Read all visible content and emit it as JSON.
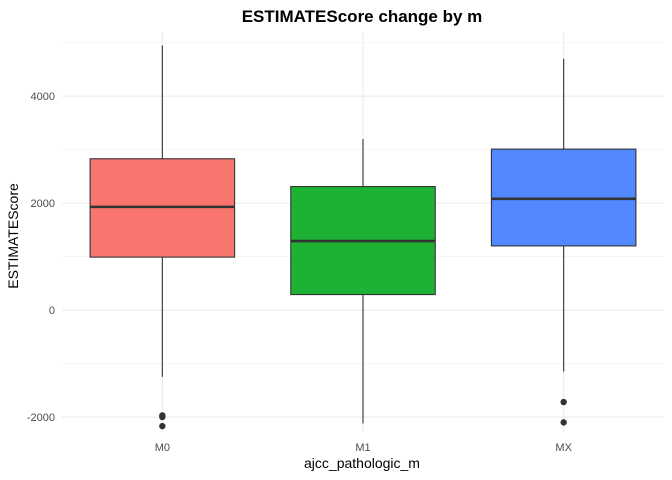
{
  "chart_data": {
    "type": "boxplot",
    "title": "ESTIMATEScore change by m",
    "xlabel": "ajcc_pathologic_m",
    "ylabel": "ESTIMATEScore",
    "categories": [
      "M0",
      "M1",
      "MX"
    ],
    "yticks": [
      -2000,
      0,
      2000,
      4000
    ],
    "ytick_labels": [
      "-2000",
      "0",
      "2000",
      "4000"
    ],
    "ylim": [
      -2280,
      5200
    ],
    "grid": true,
    "legend": "none",
    "boxes": [
      {
        "category": "M0",
        "color": "#F8766D",
        "whisker_low": -1250,
        "q1": 990,
        "median": 1930,
        "q3": 2830,
        "whisker_high": 4950,
        "outliers": [
          -1970,
          -2000,
          -2170
        ]
      },
      {
        "category": "M1",
        "color": "#1DB233",
        "whisker_low": -2120,
        "q1": 290,
        "median": 1290,
        "q3": 2310,
        "whisker_high": 3200,
        "outliers": []
      },
      {
        "category": "MX",
        "color": "#5288FF",
        "whisker_low": -1150,
        "q1": 1200,
        "median": 2080,
        "q3": 3010,
        "whisker_high": 4700,
        "outliers": [
          -1720,
          -2100
        ]
      }
    ]
  }
}
